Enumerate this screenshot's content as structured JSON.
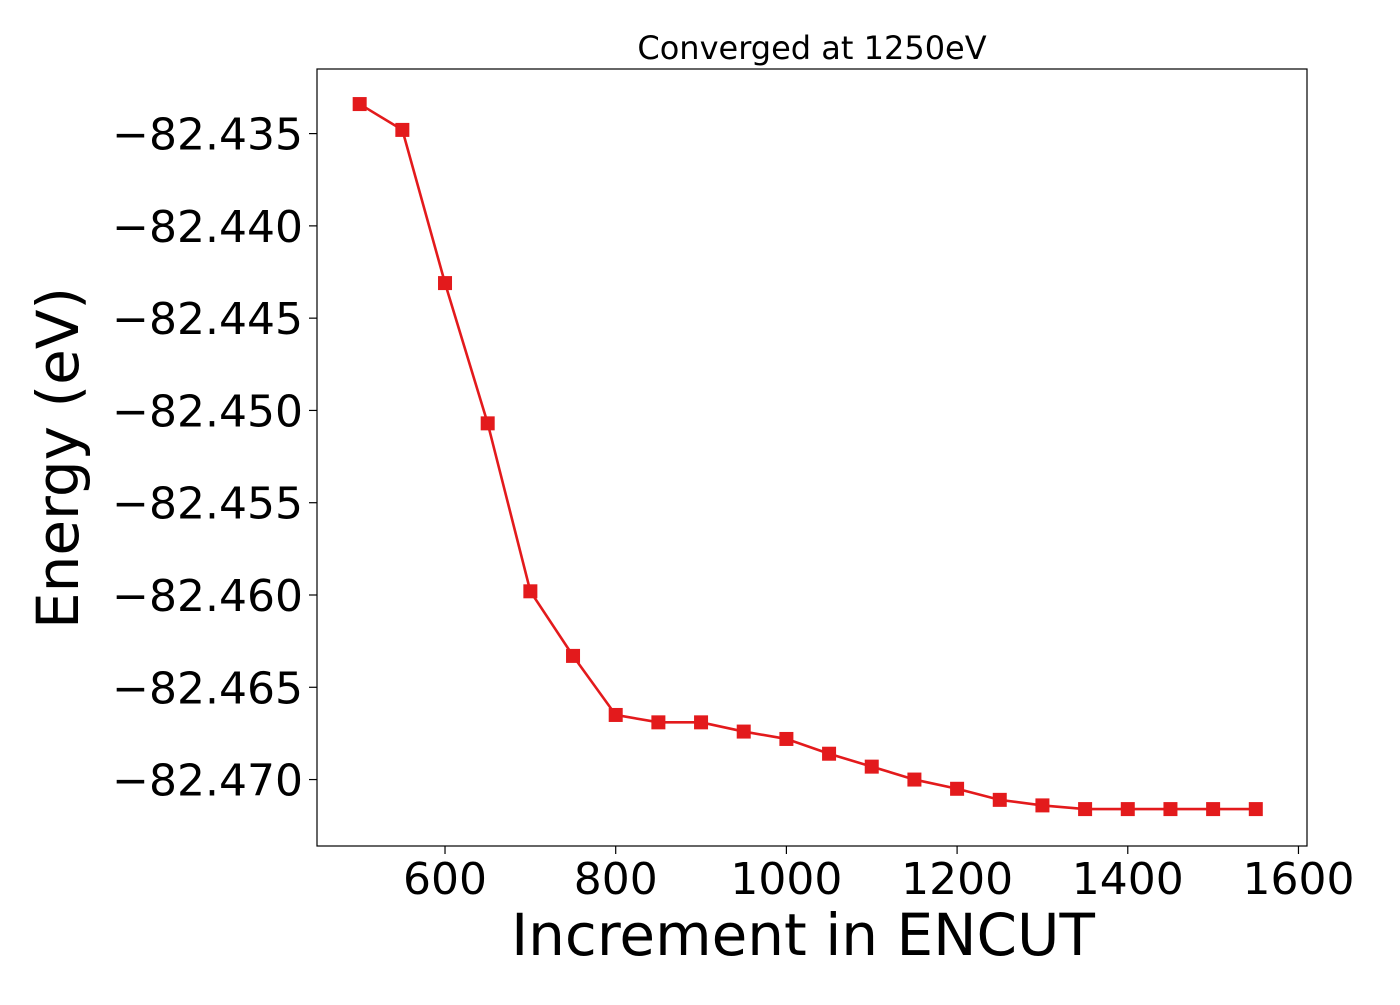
{
  "chart_data": {
    "type": "line",
    "title": "Converged at 1250eV",
    "xlabel": "Increment in ENCUT",
    "ylabel": "Energy (eV)",
    "xlim": [
      450,
      1610
    ],
    "ylim": [
      -82.4736,
      -82.4315
    ],
    "xticks": [
      600,
      800,
      1000,
      1200,
      1400,
      1600
    ],
    "yticks": [
      -82.435,
      -82.44,
      -82.445,
      -82.45,
      -82.455,
      -82.46,
      -82.465,
      -82.47
    ],
    "ytick_labels": [
      "−82.435",
      "−82.440",
      "−82.445",
      "−82.450",
      "−82.455",
      "−82.460",
      "−82.465",
      "−82.470"
    ],
    "grid": false,
    "marker": "square",
    "color": "#e31a1c",
    "series": [
      {
        "x": [
          500,
          550,
          600,
          650,
          700,
          750,
          800,
          850,
          900,
          950,
          1000,
          1050,
          1100,
          1150,
          1200,
          1250,
          1300,
          1350,
          1400,
          1450,
          1500,
          1550
        ],
        "values": [
          -82.4334,
          -82.4348,
          -82.4431,
          -82.4507,
          -82.4598,
          -82.4633,
          -82.4665,
          -82.4669,
          -82.4669,
          -82.4674,
          -82.4678,
          -82.4686,
          -82.4693,
          -82.47,
          -82.4705,
          -82.4711,
          -82.4714,
          -82.4716,
          -82.4716,
          -82.4716,
          -82.4716,
          -82.4716
        ]
      }
    ]
  }
}
